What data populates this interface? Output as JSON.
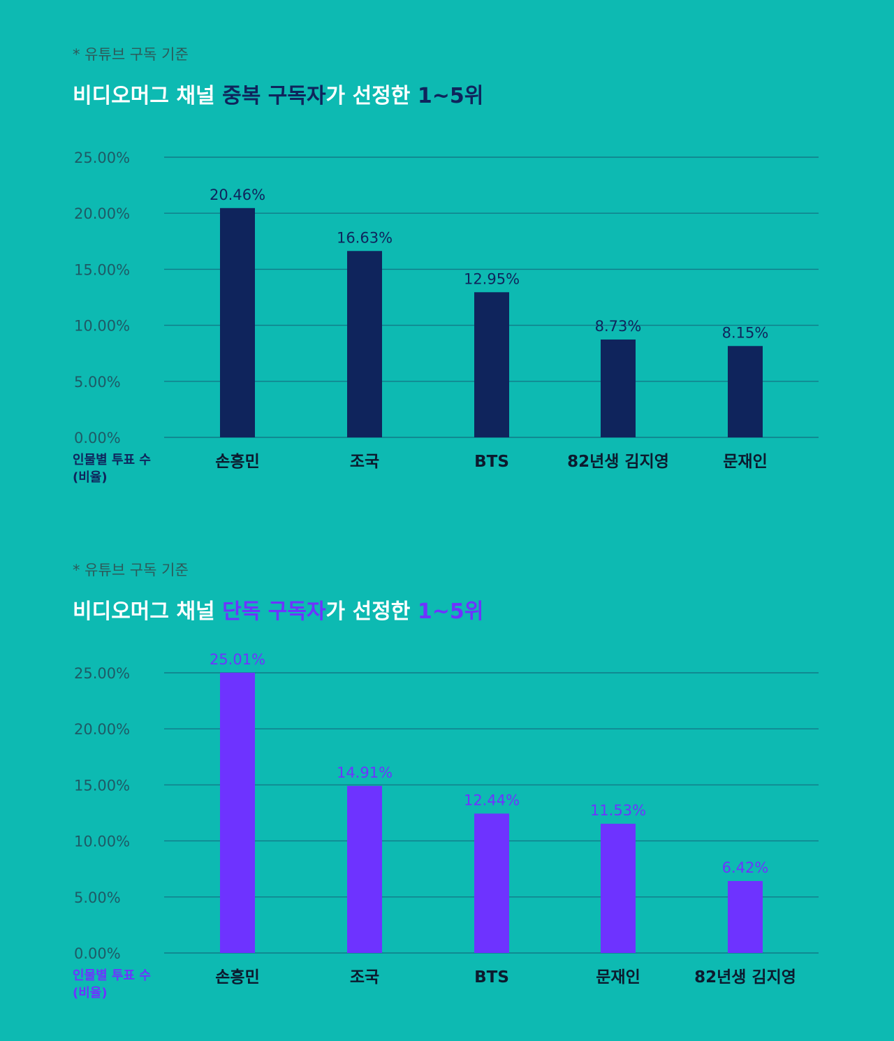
{
  "colors": {
    "background": "#0dbab2",
    "dark_navy": "#0f245c",
    "purple": "#6e33ff",
    "title_white": "#ffffff"
  },
  "chart_data": [
    {
      "type": "bar",
      "note": "* 유튜브 구독 기준",
      "title_parts": [
        "비디오머그 채널 ",
        "중복 구독자",
        "가 선정한 ",
        "1~5위"
      ],
      "ylabel_lines": [
        "인물별 투표 수",
        "(비율)"
      ],
      "categories": [
        "손흥민",
        "조국",
        "BTS",
        "82년생 김지영",
        "문재인"
      ],
      "values": [
        20.46,
        16.63,
        12.95,
        8.73,
        8.15
      ],
      "value_labels": [
        "20.46%",
        "16.63%",
        "12.95%",
        "8.73%",
        "8.15%"
      ],
      "yticks": [
        "0.00%",
        "5.00%",
        "10.00%",
        "15.00%",
        "20.00%",
        "25.00%"
      ],
      "ylim": [
        0,
        25
      ],
      "grid": true,
      "bar_color": "#0f245c"
    },
    {
      "type": "bar",
      "note": "* 유튜브 구독 기준",
      "title_parts": [
        "비디오머그 채널 ",
        "단독 구독자",
        "가 선정한 ",
        "1~5위"
      ],
      "ylabel_lines": [
        "인물별 투표 수",
        "(비율)"
      ],
      "categories": [
        "손흥민",
        "조국",
        "BTS",
        "문재인",
        "82년생 김지영"
      ],
      "values": [
        25.01,
        14.91,
        12.44,
        11.53,
        6.42
      ],
      "value_labels": [
        "25.01%",
        "14.91%",
        "12.44%",
        "11.53%",
        "6.42%"
      ],
      "yticks": [
        "0.00%",
        "5.00%",
        "10.00%",
        "15.00%",
        "20.00%",
        "25.00%"
      ],
      "ylim": [
        0,
        25
      ],
      "grid": true,
      "bar_color": "#6e33ff"
    }
  ]
}
